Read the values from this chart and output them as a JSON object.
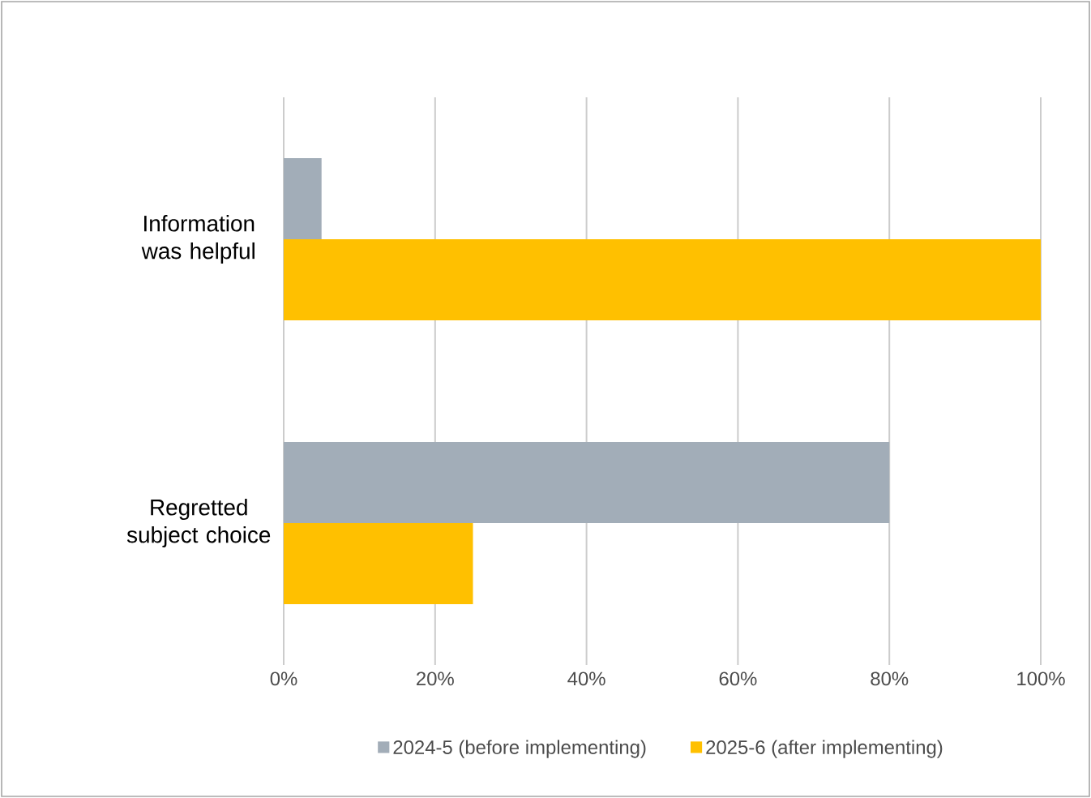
{
  "chart_data": {
    "type": "bar",
    "orientation": "horizontal",
    "categories": [
      "Information was helpful",
      "Regretted subject choice"
    ],
    "series": [
      {
        "name": "2024-5 (before implementing)",
        "color": "#a2adb8",
        "values": [
          5,
          80
        ]
      },
      {
        "name": "2025-6 (after implementing)",
        "color": "#ffc000",
        "values": [
          100,
          25
        ]
      }
    ],
    "xlim": [
      0,
      100
    ],
    "xticks": [
      {
        "value": 0,
        "label": "0%"
      },
      {
        "value": 20,
        "label": "20%"
      },
      {
        "value": 40,
        "label": "40%"
      },
      {
        "value": 60,
        "label": "60%"
      },
      {
        "value": 80,
        "label": "80%"
      },
      {
        "value": 100,
        "label": "100%"
      }
    ],
    "grid": "x",
    "legend": "bottom"
  }
}
